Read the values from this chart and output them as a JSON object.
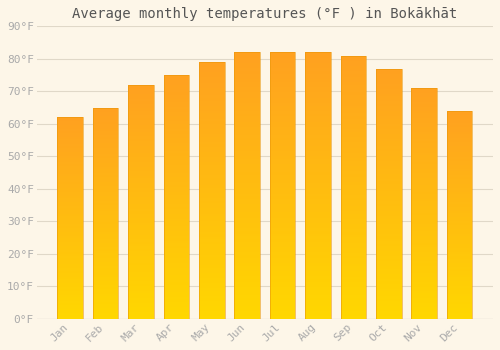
{
  "title": "Average monthly temperatures (°F ) in Bokākhāt",
  "months": [
    "Jan",
    "Feb",
    "Mar",
    "Apr",
    "May",
    "Jun",
    "Jul",
    "Aug",
    "Sep",
    "Oct",
    "Nov",
    "Dec"
  ],
  "values": [
    62,
    65,
    72,
    75,
    79,
    82,
    82,
    82,
    81,
    77,
    71,
    64
  ],
  "bar_color_top": "#FFA020",
  "bar_color_bottom": "#FFD700",
  "ylim": [
    0,
    90
  ],
  "ytick_step": 10,
  "background_color": "#fdf6e8",
  "plot_bg_color": "#fdf6e8",
  "grid_color": "#e0d8c8",
  "title_fontsize": 10,
  "tick_fontsize": 8,
  "tick_label_color": "#aaaaaa"
}
